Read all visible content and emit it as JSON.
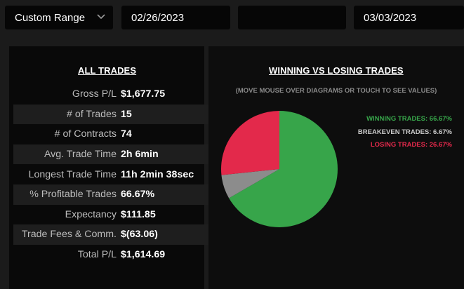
{
  "controls": {
    "range_label": "Custom Range",
    "start_date": "02/26/2023",
    "middle_value": "",
    "end_date": "03/03/2023"
  },
  "all_trades": {
    "title": "ALL TRADES",
    "rows": [
      {
        "label": "Gross P/L",
        "value": "$1,677.75"
      },
      {
        "label": "# of Trades",
        "value": "15"
      },
      {
        "label": "# of Contracts",
        "value": "74"
      },
      {
        "label": "Avg. Trade Time",
        "value": "2h 6min"
      },
      {
        "label": "Longest Trade Time",
        "value": "11h 2min 38sec"
      },
      {
        "label": "% Profitable Trades",
        "value": "66.67%"
      },
      {
        "label": "Expectancy",
        "value": "$111.85"
      },
      {
        "label": "Trade Fees & Comm.",
        "value": "$(63.06)"
      },
      {
        "label": "Total P/L",
        "value": "$1,614.69"
      }
    ]
  },
  "win_loss": {
    "title": "WINNING VS LOSING TRADES",
    "note": "(MOVE MOUSE OVER DIAGRAMS OR TOUCH TO SEE VALUES)",
    "legend": [
      {
        "text": "WINNING TRADES: 66.67%",
        "color": "#37a54a"
      },
      {
        "text": "BREAKEVEN TRADES: 6.67%",
        "color": "#c8c8c8"
      },
      {
        "text": "LOSING TRADES: 26.67%",
        "color": "#e3294b"
      }
    ]
  },
  "chart_data": {
    "type": "pie",
    "categories": [
      "Winning Trades",
      "Breakeven Trades",
      "Losing Trades"
    ],
    "values": [
      66.67,
      6.67,
      26.67
    ],
    "colors": [
      "#37a54a",
      "#8c8c8c",
      "#e3294b"
    ],
    "start_angle_deg": 0
  }
}
